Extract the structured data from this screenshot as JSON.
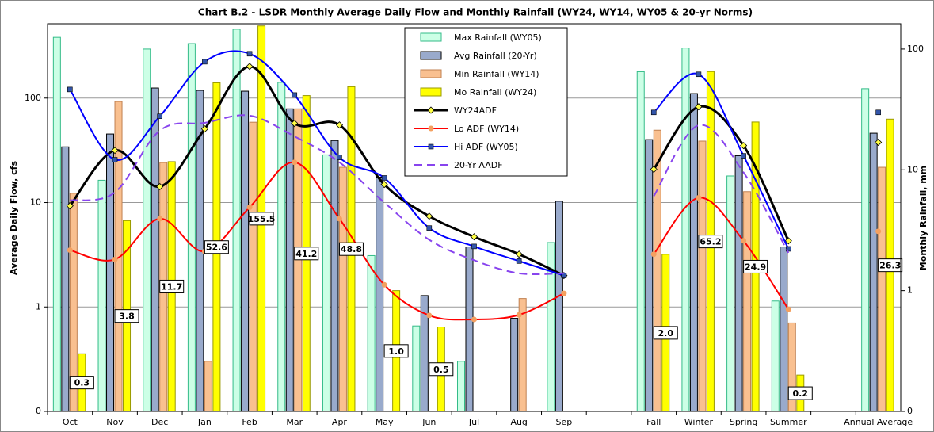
{
  "chart_data": {
    "type": "combo",
    "title": "Chart B.2 - LSDR Monthly Average Daily Flow and Monthly Rainfall (WY24, WY14, WY05 & 20-yr Norms)",
    "ylabel": "Average Daily Flow, cfs",
    "y2label": "Monthly Rainfall, mm",
    "categories": [
      "Oct",
      "Nov",
      "Dec",
      "Jan",
      "Feb",
      "Mar",
      "Apr",
      "May",
      "Jun",
      "Jul",
      "Aug",
      "Sep",
      null,
      "Fall",
      "Winter",
      "Spring",
      "Summer",
      null,
      "Annual Average"
    ],
    "yscale": "log",
    "y2scale": "log",
    "ylim": [
      0.1,
      515
    ],
    "yticks": [
      {
        "value": 0.1,
        "label": "0"
      },
      1,
      10,
      100
    ],
    "y2lim": [
      0.1,
      162
    ],
    "y2ticks": [
      {
        "value": 0.1,
        "label": "0"
      },
      1,
      10,
      100
    ],
    "grid": true,
    "legend": "top",
    "series": [
      {
        "name": "Max Rainfall (WY05)",
        "type": "bar",
        "axis": "y2",
        "color": "#ccffe6",
        "edge": "#33bb88",
        "values": [
          125,
          8.2,
          100,
          111,
          146,
          53,
          13.3,
          1.95,
          0.51,
          0.26,
          null,
          2.5,
          null,
          65,
          102,
          8.9,
          0.82,
          null,
          47
        ]
      },
      {
        "name": "Avg Rainfall (20-Yr)",
        "type": "bar",
        "axis": "y2",
        "color": "#99aacc",
        "edge": "#000000",
        "values": [
          15.5,
          19.8,
          47.6,
          45.5,
          44.8,
          32,
          17.5,
          8.7,
          0.91,
          2.3,
          0.59,
          5.5,
          null,
          17.8,
          42.8,
          13.1,
          2.3,
          null,
          20.1
        ]
      },
      {
        "name": "Min Rainfall (WY14)",
        "type": "bar",
        "axis": "y2",
        "color": "#f9c090",
        "edge": "#c08050",
        "values": [
          6.4,
          36.8,
          11.5,
          0.26,
          24.8,
          32,
          10.5,
          null,
          null,
          null,
          0.86,
          null,
          null,
          21.3,
          17.3,
          6.6,
          0.54,
          null,
          10.5
        ]
      },
      {
        "name": "Mo Rainfall (WY24)",
        "type": "bar",
        "axis": "y2",
        "color": "#ffff00",
        "edge": "#999900",
        "values": [
          0.3,
          3.8,
          11.7,
          52.6,
          155.5,
          41.2,
          48.8,
          1.0,
          0.5,
          null,
          null,
          null,
          null,
          2.0,
          65.2,
          24.9,
          0.2,
          null,
          26.3
        ],
        "value_labels": [
          "0.3",
          "3.8",
          "11.7",
          "52.6",
          "155.5",
          "41.2",
          "48.8",
          "1.0",
          "0.5",
          null,
          null,
          null,
          null,
          "2.0",
          "65.2",
          "24.9",
          "0.2",
          null,
          "26.3"
        ]
      },
      {
        "name": "WY24ADF",
        "type": "line",
        "color": "#000000",
        "width": 3,
        "marker": "diamond",
        "marker_color": "#ffff44",
        "values": [
          9.3,
          31.6,
          14.2,
          50.7,
          201,
          57.3,
          55.3,
          14.9,
          7.4,
          4.7,
          3.2,
          2.0,
          null,
          20.8,
          82.6,
          35.1,
          4.3,
          null,
          37.7
        ]
      },
      {
        "name": "Lo ADF (WY14)",
        "type": "line",
        "color": "#ff0000",
        "width": 2,
        "marker": "circle",
        "marker_color": "#f4a060",
        "values": [
          3.5,
          2.85,
          7.0,
          3.4,
          9.0,
          24.3,
          7.0,
          1.63,
          0.83,
          0.76,
          0.84,
          1.35,
          null,
          3.2,
          11.1,
          4.3,
          0.95,
          null,
          5.3
        ]
      },
      {
        "name": "Hi ADF (WY05)",
        "type": "line",
        "color": "#0000ff",
        "width": 2,
        "marker": "square",
        "marker_color": "#3355aa",
        "values": [
          121,
          25.7,
          67,
          223,
          266,
          107,
          27,
          17.2,
          5.7,
          3.8,
          2.75,
          2.0,
          null,
          73,
          169,
          28,
          3.6,
          null,
          73
        ]
      },
      {
        "name": "20-Yr AADF",
        "type": "line",
        "color": "#8844ee",
        "width": 2,
        "dash": true,
        "values": [
          10.5,
          12.5,
          48.9,
          58,
          68,
          43,
          24.3,
          10,
          4.4,
          2.8,
          2.1,
          2.1,
          null,
          11.5,
          55,
          19.4,
          3.3,
          null,
          null
        ]
      }
    ]
  }
}
